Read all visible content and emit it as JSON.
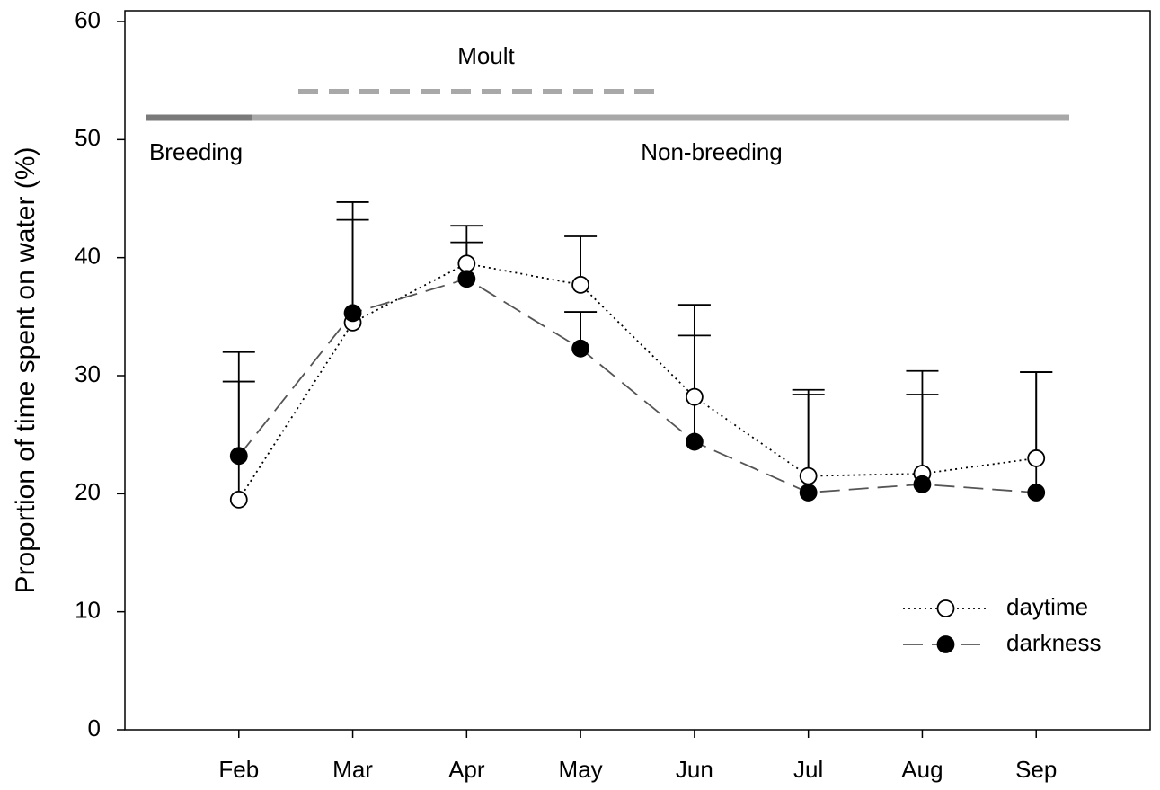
{
  "chart_data": {
    "type": "line",
    "y_label": "Proportion of time spent on water (%)",
    "annotations": [
      "Breeding",
      "Non-breeding",
      "Moult"
    ],
    "categories": [
      "Feb",
      "Mar",
      "Apr",
      "May",
      "Jun",
      "Jul",
      "Aug",
      "Sep"
    ],
    "series": [
      {
        "name": "daytime",
        "color": "#000000",
        "marker": "open",
        "line": "dotted",
        "values": [
          19.5,
          34.5,
          39.5,
          37.7,
          28.2,
          21.5,
          21.7,
          23.0
        ],
        "errors": [
          12.5,
          10.2,
          3.2,
          4.1,
          7.8,
          7.3,
          8.7,
          7.3
        ]
      },
      {
        "name": "darkness",
        "color": "#000000",
        "marker": "filled",
        "line": "dashed",
        "values": [
          23.2,
          35.3,
          38.2,
          32.3,
          24.4,
          20.1,
          20.8,
          20.1
        ],
        "errors": [
          6.3,
          7.9,
          3.1,
          3.1,
          9.0,
          8.3,
          7.6,
          10.2
        ]
      }
    ],
    "ylim": [
      0,
      60
    ],
    "yticks": [
      0,
      10,
      20,
      30,
      40,
      50,
      60
    ],
    "legend": "lower right",
    "grid": false
  }
}
